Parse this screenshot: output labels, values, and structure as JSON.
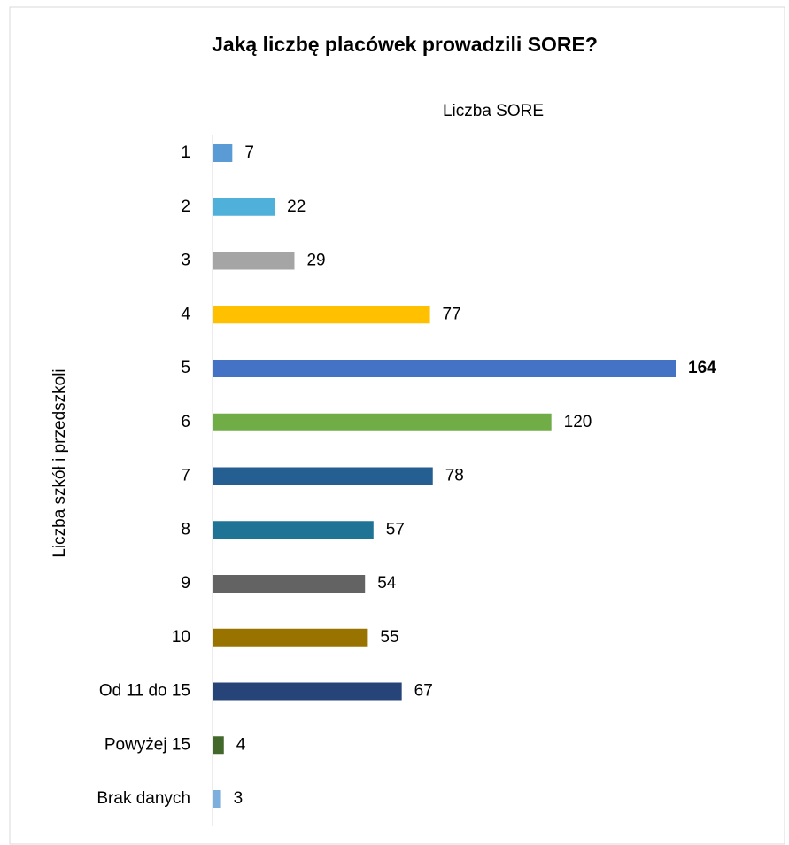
{
  "chart_data": {
    "type": "bar",
    "orientation": "horizontal",
    "title": "Jaką liczbę placówek prowadzili SORE?",
    "x_label": "Liczba SORE",
    "y_label": "Liczba szkół i przedszkoli",
    "categories": [
      "1",
      "2",
      "3",
      "4",
      "5",
      "6",
      "7",
      "8",
      "9",
      "10",
      "Od 11 do 15",
      "Powyżej 15",
      "Brak danych"
    ],
    "values": [
      7,
      22,
      29,
      77,
      164,
      120,
      78,
      57,
      54,
      55,
      67,
      4,
      3
    ],
    "colors": [
      "#5b9bd5",
      "#4fb0da",
      "#a5a5a5",
      "#ffc000",
      "#4472c4",
      "#70ad47",
      "#255e91",
      "#1f7394",
      "#636363",
      "#997300",
      "#264478",
      "#43682b",
      "#7cafdd"
    ],
    "highlight_index": 4
  }
}
